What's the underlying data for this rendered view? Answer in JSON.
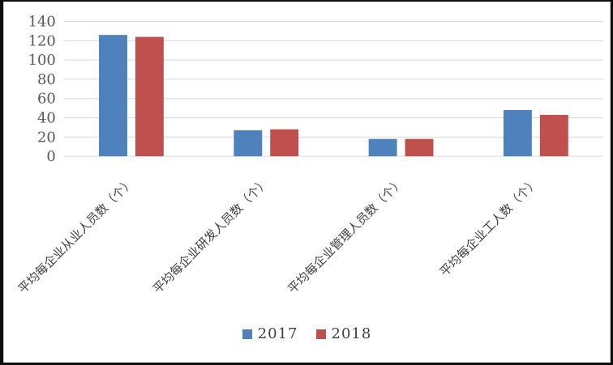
{
  "frame": {
    "background": "#FFFFFF",
    "edge_color": "#0E0E0E"
  },
  "chart_data": {
    "type": "bar",
    "categories": [
      "平均每企业从业人员数（个）",
      "平均每企业研发人员数（个）",
      "平均每企业管理人员数（个）",
      "平均每企业工人数（个）"
    ],
    "series": [
      {
        "name": "2017",
        "color": "#4F81BD",
        "values": [
          126,
          27,
          18,
          48
        ]
      },
      {
        "name": "2018",
        "color": "#C0504D",
        "values": [
          124,
          28,
          18,
          43
        ]
      }
    ],
    "title": "",
    "xlabel": "",
    "ylabel": "",
    "ylim": [
      0,
      140
    ],
    "ytick_step": 20,
    "yticks": [
      0,
      20,
      40,
      60,
      80,
      100,
      120,
      140
    ],
    "grid": true,
    "legend_position": "bottom",
    "gridline_color": "#D9D9D9",
    "tick_label_color": "#595959",
    "category_label_color": "#404040",
    "category_label_rotation": 45
  }
}
